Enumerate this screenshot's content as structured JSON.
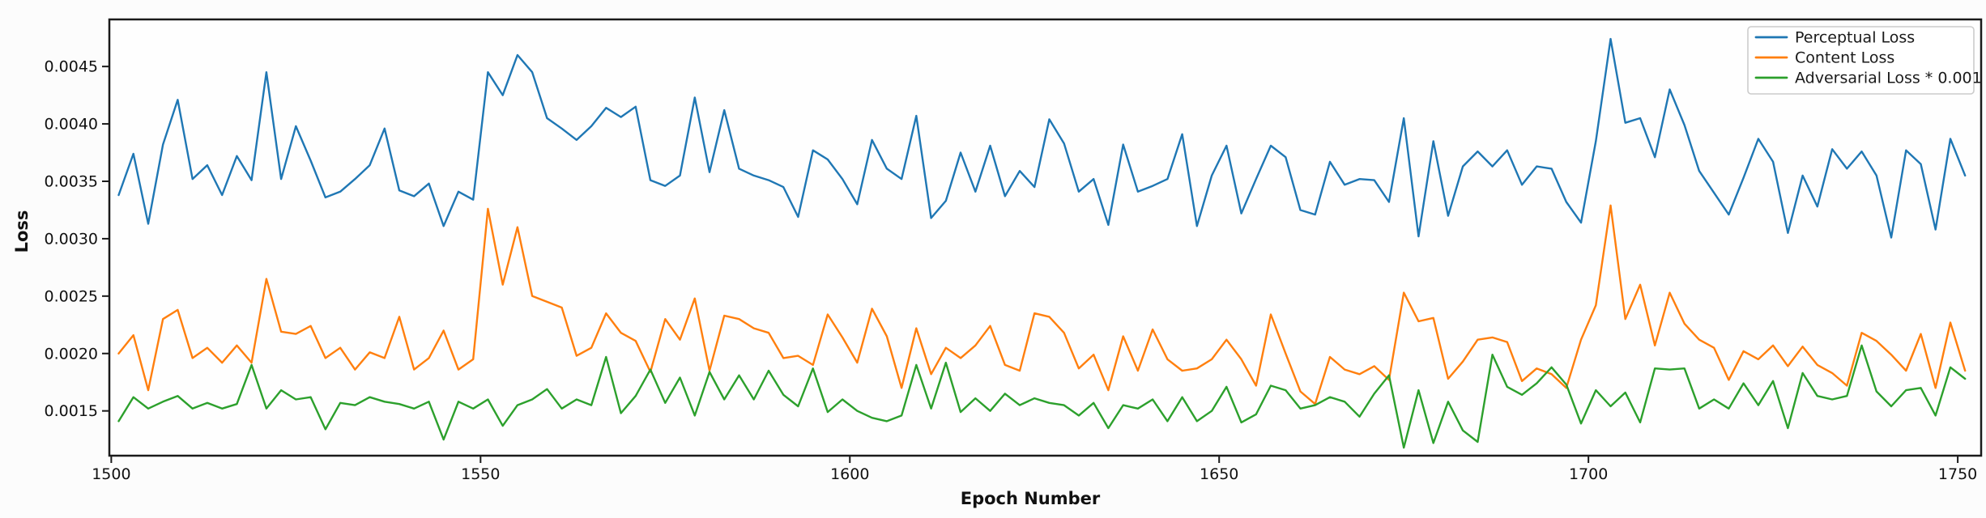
{
  "figure": {
    "background": "#fcfcfc",
    "plot_background": "#fefefe",
    "spine_color": "#1a1a1a",
    "text_color": "#111111",
    "legend_border_color": "#cccccc"
  },
  "chart_data": {
    "type": "line",
    "title": "",
    "xlabel": "Epoch Number",
    "ylabel": "Loss",
    "grid": false,
    "legend_position": "upper right",
    "xlim": [
      1499.74,
      1753.17
    ],
    "ylim": [
      0.00111,
      0.00491
    ],
    "x_ticks": [
      1500,
      1550,
      1600,
      1650,
      1700,
      1750
    ],
    "x_tick_labels": [
      "1500",
      "1550",
      "1600",
      "1650",
      "1700",
      "1750"
    ],
    "y_ticks": [
      0.0015,
      0.002,
      0.0025,
      0.003,
      0.0035,
      0.004,
      0.0045
    ],
    "y_tick_labels": [
      "0.0015",
      "0.0020",
      "0.0025",
      "0.0030",
      "0.0035",
      "0.0040",
      "0.0045"
    ],
    "x": [
      1501,
      1503,
      1505,
      1507,
      1509,
      1511,
      1513,
      1515,
      1517,
      1519,
      1521,
      1523,
      1525,
      1527,
      1529,
      1531,
      1533,
      1535,
      1537,
      1539,
      1541,
      1543,
      1545,
      1547,
      1549,
      1551,
      1553,
      1555,
      1557,
      1559,
      1561,
      1563,
      1565,
      1567,
      1569,
      1571,
      1573,
      1575,
      1577,
      1579,
      1581,
      1583,
      1585,
      1587,
      1589,
      1591,
      1593,
      1595,
      1597,
      1599,
      1601,
      1603,
      1605,
      1607,
      1609,
      1611,
      1613,
      1615,
      1617,
      1619,
      1621,
      1623,
      1625,
      1627,
      1629,
      1631,
      1633,
      1635,
      1637,
      1639,
      1641,
      1643,
      1645,
      1647,
      1649,
      1651,
      1653,
      1655,
      1657,
      1659,
      1661,
      1663,
      1665,
      1667,
      1669,
      1671,
      1673,
      1675,
      1677,
      1679,
      1681,
      1683,
      1685,
      1687,
      1689,
      1691,
      1693,
      1695,
      1697,
      1699,
      1701,
      1703,
      1705,
      1707,
      1709,
      1711,
      1713,
      1715,
      1717,
      1719,
      1721,
      1723,
      1725,
      1727,
      1729,
      1731,
      1733,
      1735,
      1737,
      1739,
      1741,
      1743,
      1745,
      1747,
      1749,
      1751
    ],
    "series": [
      {
        "name": "Perceptual Loss",
        "color": "#1f77b4",
        "values": [
          0.00338,
          0.00374,
          0.00313,
          0.00382,
          0.00421,
          0.00352,
          0.00364,
          0.00338,
          0.00372,
          0.00351,
          0.00445,
          0.00352,
          0.00398,
          0.00368,
          0.00336,
          0.00341,
          0.00352,
          0.00364,
          0.00396,
          0.00342,
          0.00337,
          0.00348,
          0.00311,
          0.00341,
          0.00334,
          0.00445,
          0.00425,
          0.0046,
          0.00445,
          0.00405,
          0.00396,
          0.00386,
          0.00398,
          0.00414,
          0.00406,
          0.00415,
          0.00351,
          0.00346,
          0.00355,
          0.00423,
          0.00358,
          0.00412,
          0.00361,
          0.00355,
          0.00351,
          0.00345,
          0.00319,
          0.00377,
          0.00369,
          0.00352,
          0.0033,
          0.00386,
          0.00361,
          0.00352,
          0.00407,
          0.00318,
          0.00333,
          0.00375,
          0.00341,
          0.00381,
          0.00337,
          0.00359,
          0.00345,
          0.00404,
          0.00383,
          0.00341,
          0.00352,
          0.00312,
          0.00382,
          0.00341,
          0.00346,
          0.00352,
          0.00391,
          0.00311,
          0.00355,
          0.00381,
          0.00322,
          0.00352,
          0.00381,
          0.00371,
          0.00325,
          0.00321,
          0.00367,
          0.00347,
          0.00352,
          0.00351,
          0.00332,
          0.00405,
          0.00302,
          0.00385,
          0.0032,
          0.00363,
          0.00376,
          0.00363,
          0.00377,
          0.00347,
          0.00363,
          0.00361,
          0.00332,
          0.00314,
          0.00385,
          0.00474,
          0.00401,
          0.00405,
          0.00371,
          0.0043,
          0.00399,
          0.00359,
          0.0034,
          0.00321,
          0.00353,
          0.00387,
          0.00367,
          0.00305,
          0.00355,
          0.00328,
          0.00378,
          0.00361,
          0.00376,
          0.00355,
          0.00301,
          0.00377,
          0.00365,
          0.00308,
          0.00387,
          0.00355
        ]
      },
      {
        "name": "Content Loss",
        "color": "#ff7f0e",
        "values": [
          0.002,
          0.00216,
          0.00168,
          0.0023,
          0.00238,
          0.00196,
          0.00205,
          0.00192,
          0.00207,
          0.00192,
          0.00265,
          0.00219,
          0.00217,
          0.00224,
          0.00196,
          0.00205,
          0.00186,
          0.00201,
          0.00196,
          0.00232,
          0.00186,
          0.00196,
          0.0022,
          0.00186,
          0.00195,
          0.00326,
          0.0026,
          0.0031,
          0.0025,
          0.00245,
          0.0024,
          0.00198,
          0.00205,
          0.00235,
          0.00218,
          0.00211,
          0.00184,
          0.0023,
          0.00212,
          0.00248,
          0.00185,
          0.00233,
          0.0023,
          0.00222,
          0.00218,
          0.00196,
          0.00198,
          0.0019,
          0.00234,
          0.00214,
          0.00192,
          0.00239,
          0.00215,
          0.0017,
          0.00222,
          0.00182,
          0.00205,
          0.00196,
          0.00207,
          0.00224,
          0.0019,
          0.00185,
          0.00235,
          0.00232,
          0.00218,
          0.00187,
          0.00199,
          0.00168,
          0.00215,
          0.00185,
          0.00221,
          0.00195,
          0.00185,
          0.00187,
          0.00195,
          0.00212,
          0.00195,
          0.00172,
          0.00234,
          0.002,
          0.00167,
          0.00156,
          0.00197,
          0.00186,
          0.00182,
          0.00189,
          0.00177,
          0.00253,
          0.00228,
          0.00231,
          0.00178,
          0.00193,
          0.00212,
          0.00214,
          0.0021,
          0.00176,
          0.00187,
          0.00182,
          0.0017,
          0.00212,
          0.00242,
          0.00329,
          0.0023,
          0.0026,
          0.00207,
          0.00253,
          0.00226,
          0.00212,
          0.00205,
          0.00177,
          0.00202,
          0.00195,
          0.00207,
          0.00189,
          0.00206,
          0.0019,
          0.00183,
          0.00172,
          0.00218,
          0.00211,
          0.00199,
          0.00185,
          0.00217,
          0.0017,
          0.00227,
          0.00185
        ]
      },
      {
        "name": "Adversarial Loss * 0.001",
        "color": "#2ca02c",
        "values": [
          0.00141,
          0.00162,
          0.00152,
          0.00158,
          0.00163,
          0.00152,
          0.00157,
          0.00152,
          0.00156,
          0.0019,
          0.00152,
          0.00168,
          0.0016,
          0.00162,
          0.00134,
          0.00157,
          0.00155,
          0.00162,
          0.00158,
          0.00156,
          0.00152,
          0.00158,
          0.00125,
          0.00158,
          0.00152,
          0.0016,
          0.00137,
          0.00155,
          0.0016,
          0.00169,
          0.00152,
          0.0016,
          0.00155,
          0.00197,
          0.00148,
          0.00163,
          0.00186,
          0.00157,
          0.00179,
          0.00146,
          0.00184,
          0.0016,
          0.00181,
          0.0016,
          0.00185,
          0.00164,
          0.00154,
          0.00187,
          0.00149,
          0.0016,
          0.0015,
          0.00144,
          0.00141,
          0.00146,
          0.0019,
          0.00152,
          0.00192,
          0.00149,
          0.00161,
          0.0015,
          0.00165,
          0.00155,
          0.00161,
          0.00157,
          0.00155,
          0.00146,
          0.00157,
          0.00135,
          0.00155,
          0.00152,
          0.0016,
          0.00141,
          0.00162,
          0.00141,
          0.0015,
          0.00171,
          0.0014,
          0.00147,
          0.00172,
          0.00168,
          0.00152,
          0.00155,
          0.00162,
          0.00158,
          0.00145,
          0.00165,
          0.00181,
          0.00118,
          0.00168,
          0.00122,
          0.00158,
          0.00133,
          0.00123,
          0.00199,
          0.00171,
          0.00164,
          0.00174,
          0.00188,
          0.00173,
          0.00139,
          0.00168,
          0.00154,
          0.00166,
          0.0014,
          0.00187,
          0.00186,
          0.00187,
          0.00152,
          0.0016,
          0.00152,
          0.00174,
          0.00155,
          0.00176,
          0.00135,
          0.00183,
          0.00163,
          0.0016,
          0.00163,
          0.00207,
          0.00167,
          0.00154,
          0.00168,
          0.0017,
          0.00146,
          0.00188,
          0.00178
        ]
      }
    ]
  }
}
